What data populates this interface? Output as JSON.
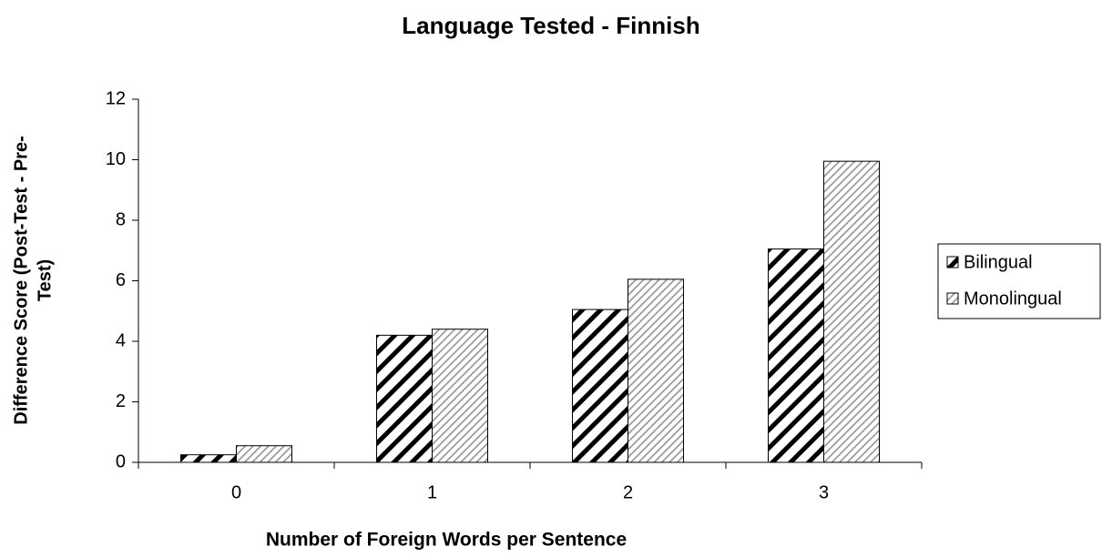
{
  "chart_data": {
    "type": "bar",
    "title": "Language Tested - Finnish",
    "xlabel": "Number of Foreign Words per Sentence",
    "ylabel": [
      "Difference Score (Post-Test - Pre-",
      "Test)"
    ],
    "categories": [
      "0",
      "1",
      "2",
      "3"
    ],
    "series": [
      {
        "name": "Bilingual",
        "color": "#000000",
        "values": [
          0.25,
          4.2,
          5.05,
          7.05
        ]
      },
      {
        "name": "Monolingual",
        "color": "#8c8c8c",
        "values": [
          0.55,
          4.4,
          6.05,
          9.95
        ]
      }
    ],
    "ylim": [
      0,
      12
    ],
    "yticks": [
      0,
      2,
      4,
      6,
      8,
      10,
      12
    ],
    "grid": false,
    "legend": "right"
  }
}
